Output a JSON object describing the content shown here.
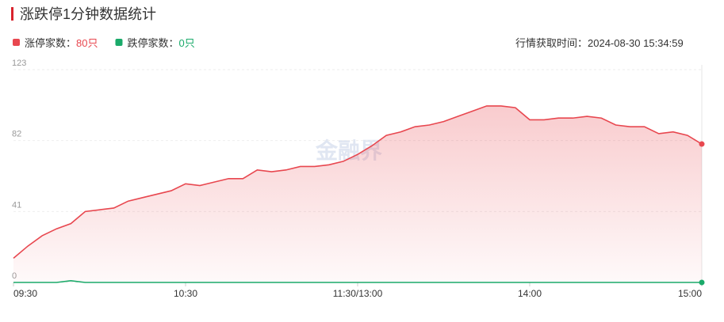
{
  "chart_data": {
    "type": "line",
    "title": "涨跌停1分钟数据统计",
    "legend": [
      {
        "label": "涨停家数：",
        "value": "80只"
      },
      {
        "label": "跌停家数：",
        "value": "0只"
      }
    ],
    "update_time": "行情获取时间：2024-08-30 15:34:59",
    "watermark": "金融界",
    "x": [
      0,
      5,
      10,
      15,
      20,
      25,
      30,
      35,
      40,
      45,
      50,
      55,
      60,
      65,
      70,
      75,
      80,
      85,
      90,
      95,
      100,
      105,
      110,
      115,
      120,
      125,
      130,
      135,
      140,
      145,
      150,
      155,
      160,
      165,
      170,
      175,
      180,
      185,
      190,
      195,
      200,
      205,
      210,
      215,
      220,
      225,
      230,
      235,
      240
    ],
    "xlim": [
      0,
      240
    ],
    "xticks": [
      {
        "value": 0,
        "label": "09:30"
      },
      {
        "value": 60,
        "label": "10:30"
      },
      {
        "value": 120,
        "label": "11:30/13:00"
      },
      {
        "value": 180,
        "label": "14:00"
      },
      {
        "value": 240,
        "label": "15:00"
      }
    ],
    "ylim": [
      0,
      123
    ],
    "yticks": [
      0,
      41,
      82,
      123
    ],
    "grid": true,
    "series": [
      {
        "name": "涨停家数",
        "color": "#e8474f",
        "values": [
          14,
          21,
          27,
          31,
          34,
          41,
          42,
          43,
          47,
          49,
          51,
          53,
          57,
          56,
          58,
          60,
          60,
          65,
          64,
          65,
          67,
          67,
          68,
          70,
          74,
          79,
          85,
          87,
          90,
          91,
          93,
          96,
          99,
          102,
          102,
          101,
          94,
          94,
          95,
          95,
          96,
          95,
          91,
          90,
          90,
          86,
          87,
          85,
          80
        ]
      },
      {
        "name": "跌停家数",
        "color": "#1aaa6a",
        "values": [
          0,
          0,
          0,
          0,
          1,
          0,
          0,
          0,
          0,
          0,
          0,
          0,
          0,
          0,
          0,
          0,
          0,
          0,
          0,
          0,
          0,
          0,
          0,
          0,
          0,
          0,
          0,
          0,
          0,
          0,
          0,
          0,
          0,
          0,
          0,
          0,
          0,
          0,
          0,
          0,
          0,
          0,
          0,
          0,
          0,
          0,
          0,
          0,
          0
        ]
      }
    ]
  }
}
